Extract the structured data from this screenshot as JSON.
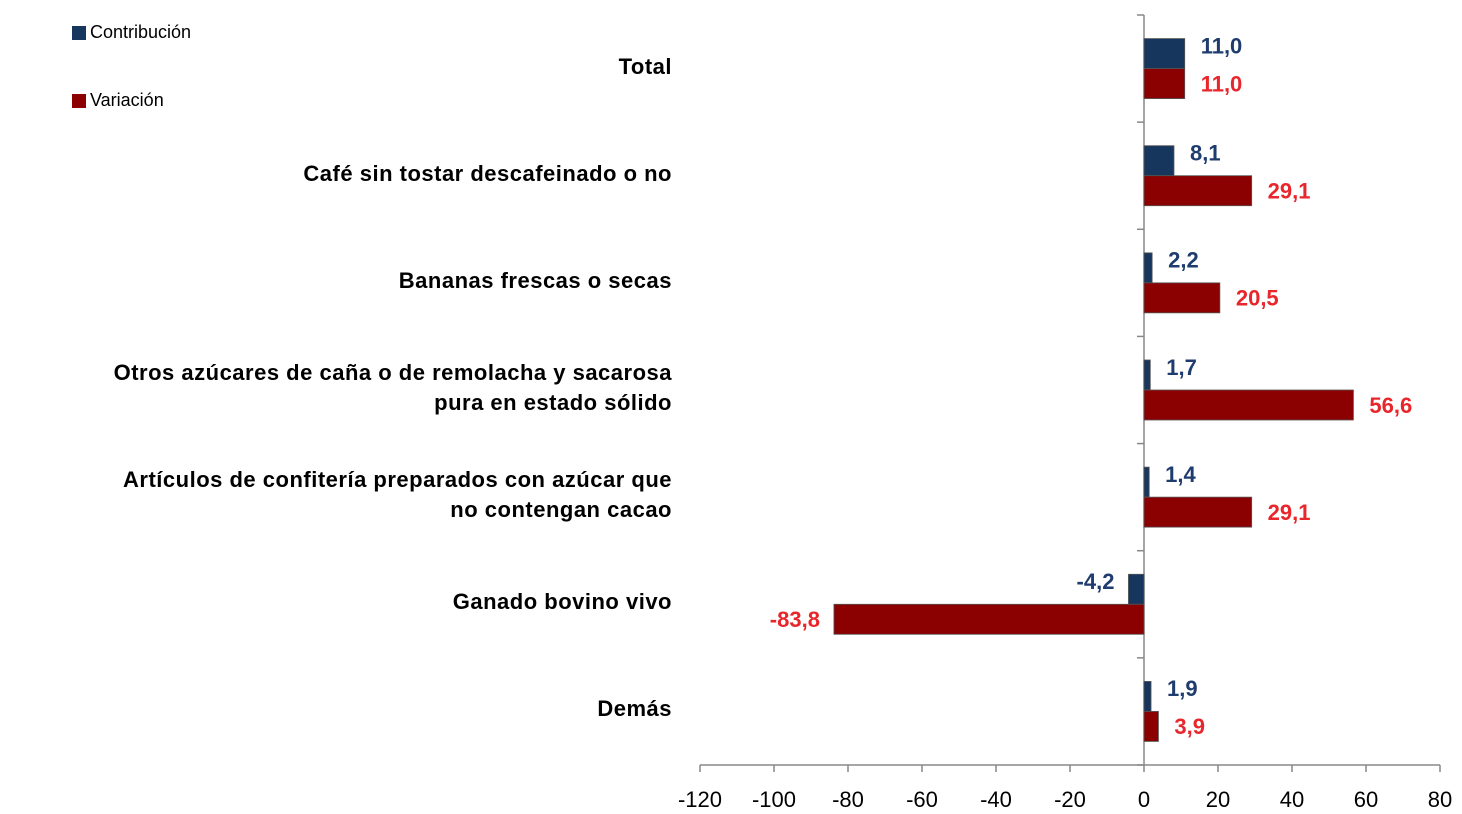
{
  "chart_data": {
    "type": "bar",
    "orientation": "horizontal",
    "categories": [
      "Total",
      "Café sin tostar descafeinado o no",
      "Bananas frescas o secas",
      "Otros azúcares de caña o de remolacha y sacarosa\npura en estado sólido",
      "Artículos de confitería preparados con azúcar que\nno contengan cacao",
      "Ganado bovino vivo",
      "Demás"
    ],
    "series": [
      {
        "name": "Contribución",
        "color": "#17365d",
        "label_color": "#1f3c6e",
        "values": [
          11.0,
          8.1,
          2.2,
          1.7,
          1.4,
          -4.2,
          1.9
        ],
        "value_labels": [
          "11,0",
          "8,1",
          "2,2",
          "1,7",
          "1,4",
          "-4,2",
          "1,9"
        ]
      },
      {
        "name": "Variación",
        "color": "#8b0000",
        "label_color": "#e8262b",
        "values": [
          11.0,
          29.1,
          20.5,
          56.6,
          29.1,
          -83.8,
          3.9
        ],
        "value_labels": [
          "11,0",
          "29,1",
          "20,5",
          "56,6",
          "29,1",
          "-83,8",
          "3,9"
        ]
      }
    ],
    "xlim": [
      -120,
      80
    ],
    "xticks": [
      -120,
      -100,
      -80,
      -60,
      -40,
      -20,
      0,
      20,
      40,
      60,
      80
    ],
    "legend": "top-left",
    "grid": false
  }
}
